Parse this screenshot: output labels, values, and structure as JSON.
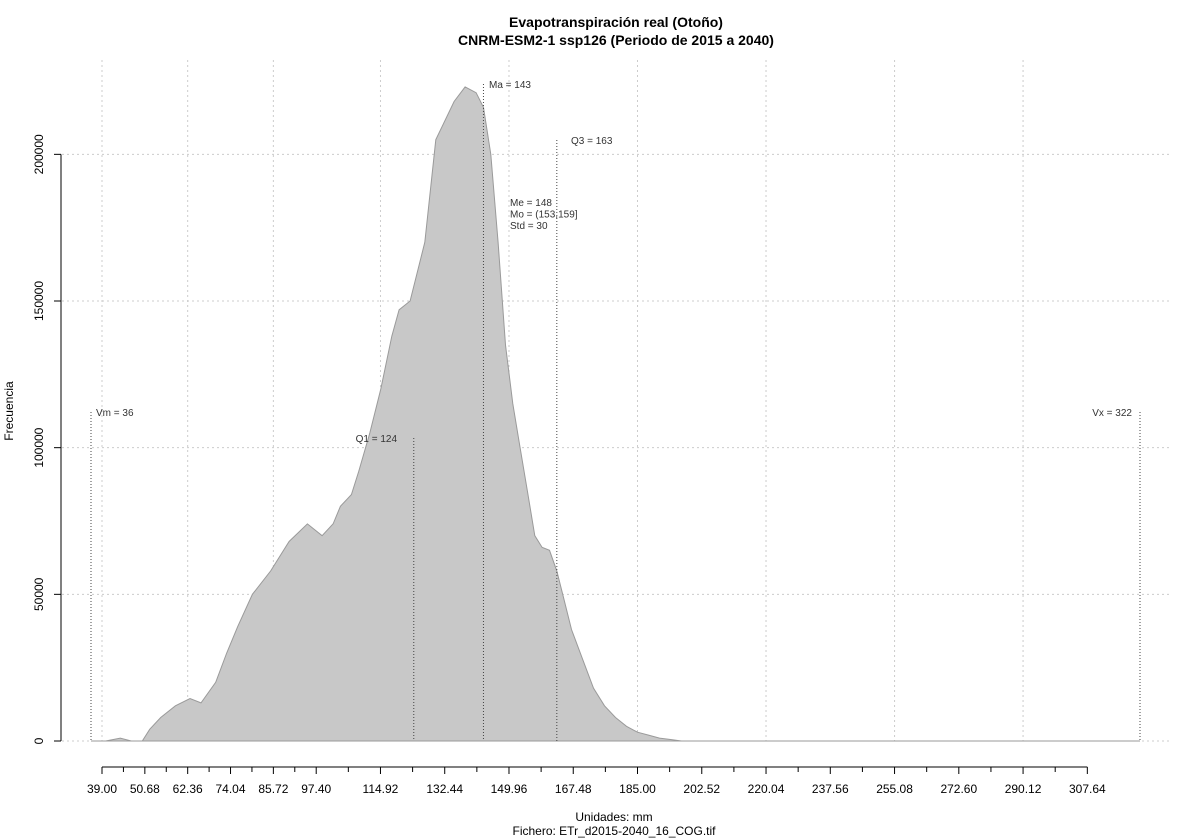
{
  "chart_data": {
    "type": "area",
    "title": "Evapotranspiración real (Otoño)",
    "subtitle": "CNRM-ESM2-1 ssp126 (Periodo de 2015 a 2040)",
    "xlabel": "Unidades: mm",
    "ylabel": "Frecuencia",
    "footer": "Fichero: ETr_d2015-2040_16_COG.tif",
    "xlim": [
      36,
      326
    ],
    "ylim": [
      0,
      225000
    ],
    "grid": true,
    "color": "#c8c8c8",
    "x_ticks": [
      "39.00",
      "50.68",
      "62.36",
      "74.04",
      "85.72",
      "97.40",
      "114.92",
      "132.44",
      "149.96",
      "167.48",
      "185.00",
      "202.52",
      "220.04",
      "237.56",
      "255.08",
      "272.60",
      "290.12",
      "307.64"
    ],
    "y_ticks": [
      "0",
      "50000",
      "100000",
      "150000",
      "200000"
    ],
    "density": {
      "x": [
        36,
        40,
        44,
        47,
        50,
        52,
        55,
        59,
        63,
        66,
        70,
        73,
        76,
        80,
        85,
        90,
        95,
        99,
        102,
        104,
        107,
        109,
        112,
        115,
        118,
        120,
        123,
        127,
        130,
        135,
        138,
        141,
        143,
        145,
        147,
        149,
        151,
        153,
        155,
        157,
        159,
        161,
        163,
        165,
        167,
        170,
        173,
        176,
        179,
        182,
        185,
        188,
        191,
        194,
        197,
        200,
        205,
        210,
        215,
        220,
        225,
        230,
        240,
        250,
        260,
        280,
        300,
        322
      ],
      "y": [
        0,
        0,
        1000,
        0,
        0,
        4000,
        8000,
        12000,
        14500,
        13000,
        20000,
        30000,
        39000,
        50000,
        58000,
        68000,
        74000,
        70000,
        74000,
        80000,
        84000,
        92000,
        105000,
        120000,
        138000,
        147000,
        150000,
        170000,
        205000,
        218000,
        223000,
        221000,
        216000,
        200000,
        170000,
        135000,
        115000,
        100000,
        85000,
        70000,
        66000,
        65000,
        58000,
        48000,
        38000,
        28000,
        18000,
        12000,
        8000,
        5000,
        3000,
        2000,
        1000,
        500,
        0,
        0,
        0,
        0,
        0,
        0,
        0,
        0,
        0,
        0,
        0,
        0,
        0,
        0
      ]
    },
    "annotations": [
      {
        "label": "Vm = 36",
        "value": 36
      },
      {
        "label": "Q1 = 124",
        "value": 124
      },
      {
        "label": "Ma = 143",
        "value": 143
      },
      {
        "label": "Q3 = 163",
        "value": 163
      },
      {
        "label": "Vx = 322",
        "value": 322
      }
    ],
    "stats": [
      "Me = 148",
      "Mo = (153,159]",
      "Std = 30"
    ]
  }
}
